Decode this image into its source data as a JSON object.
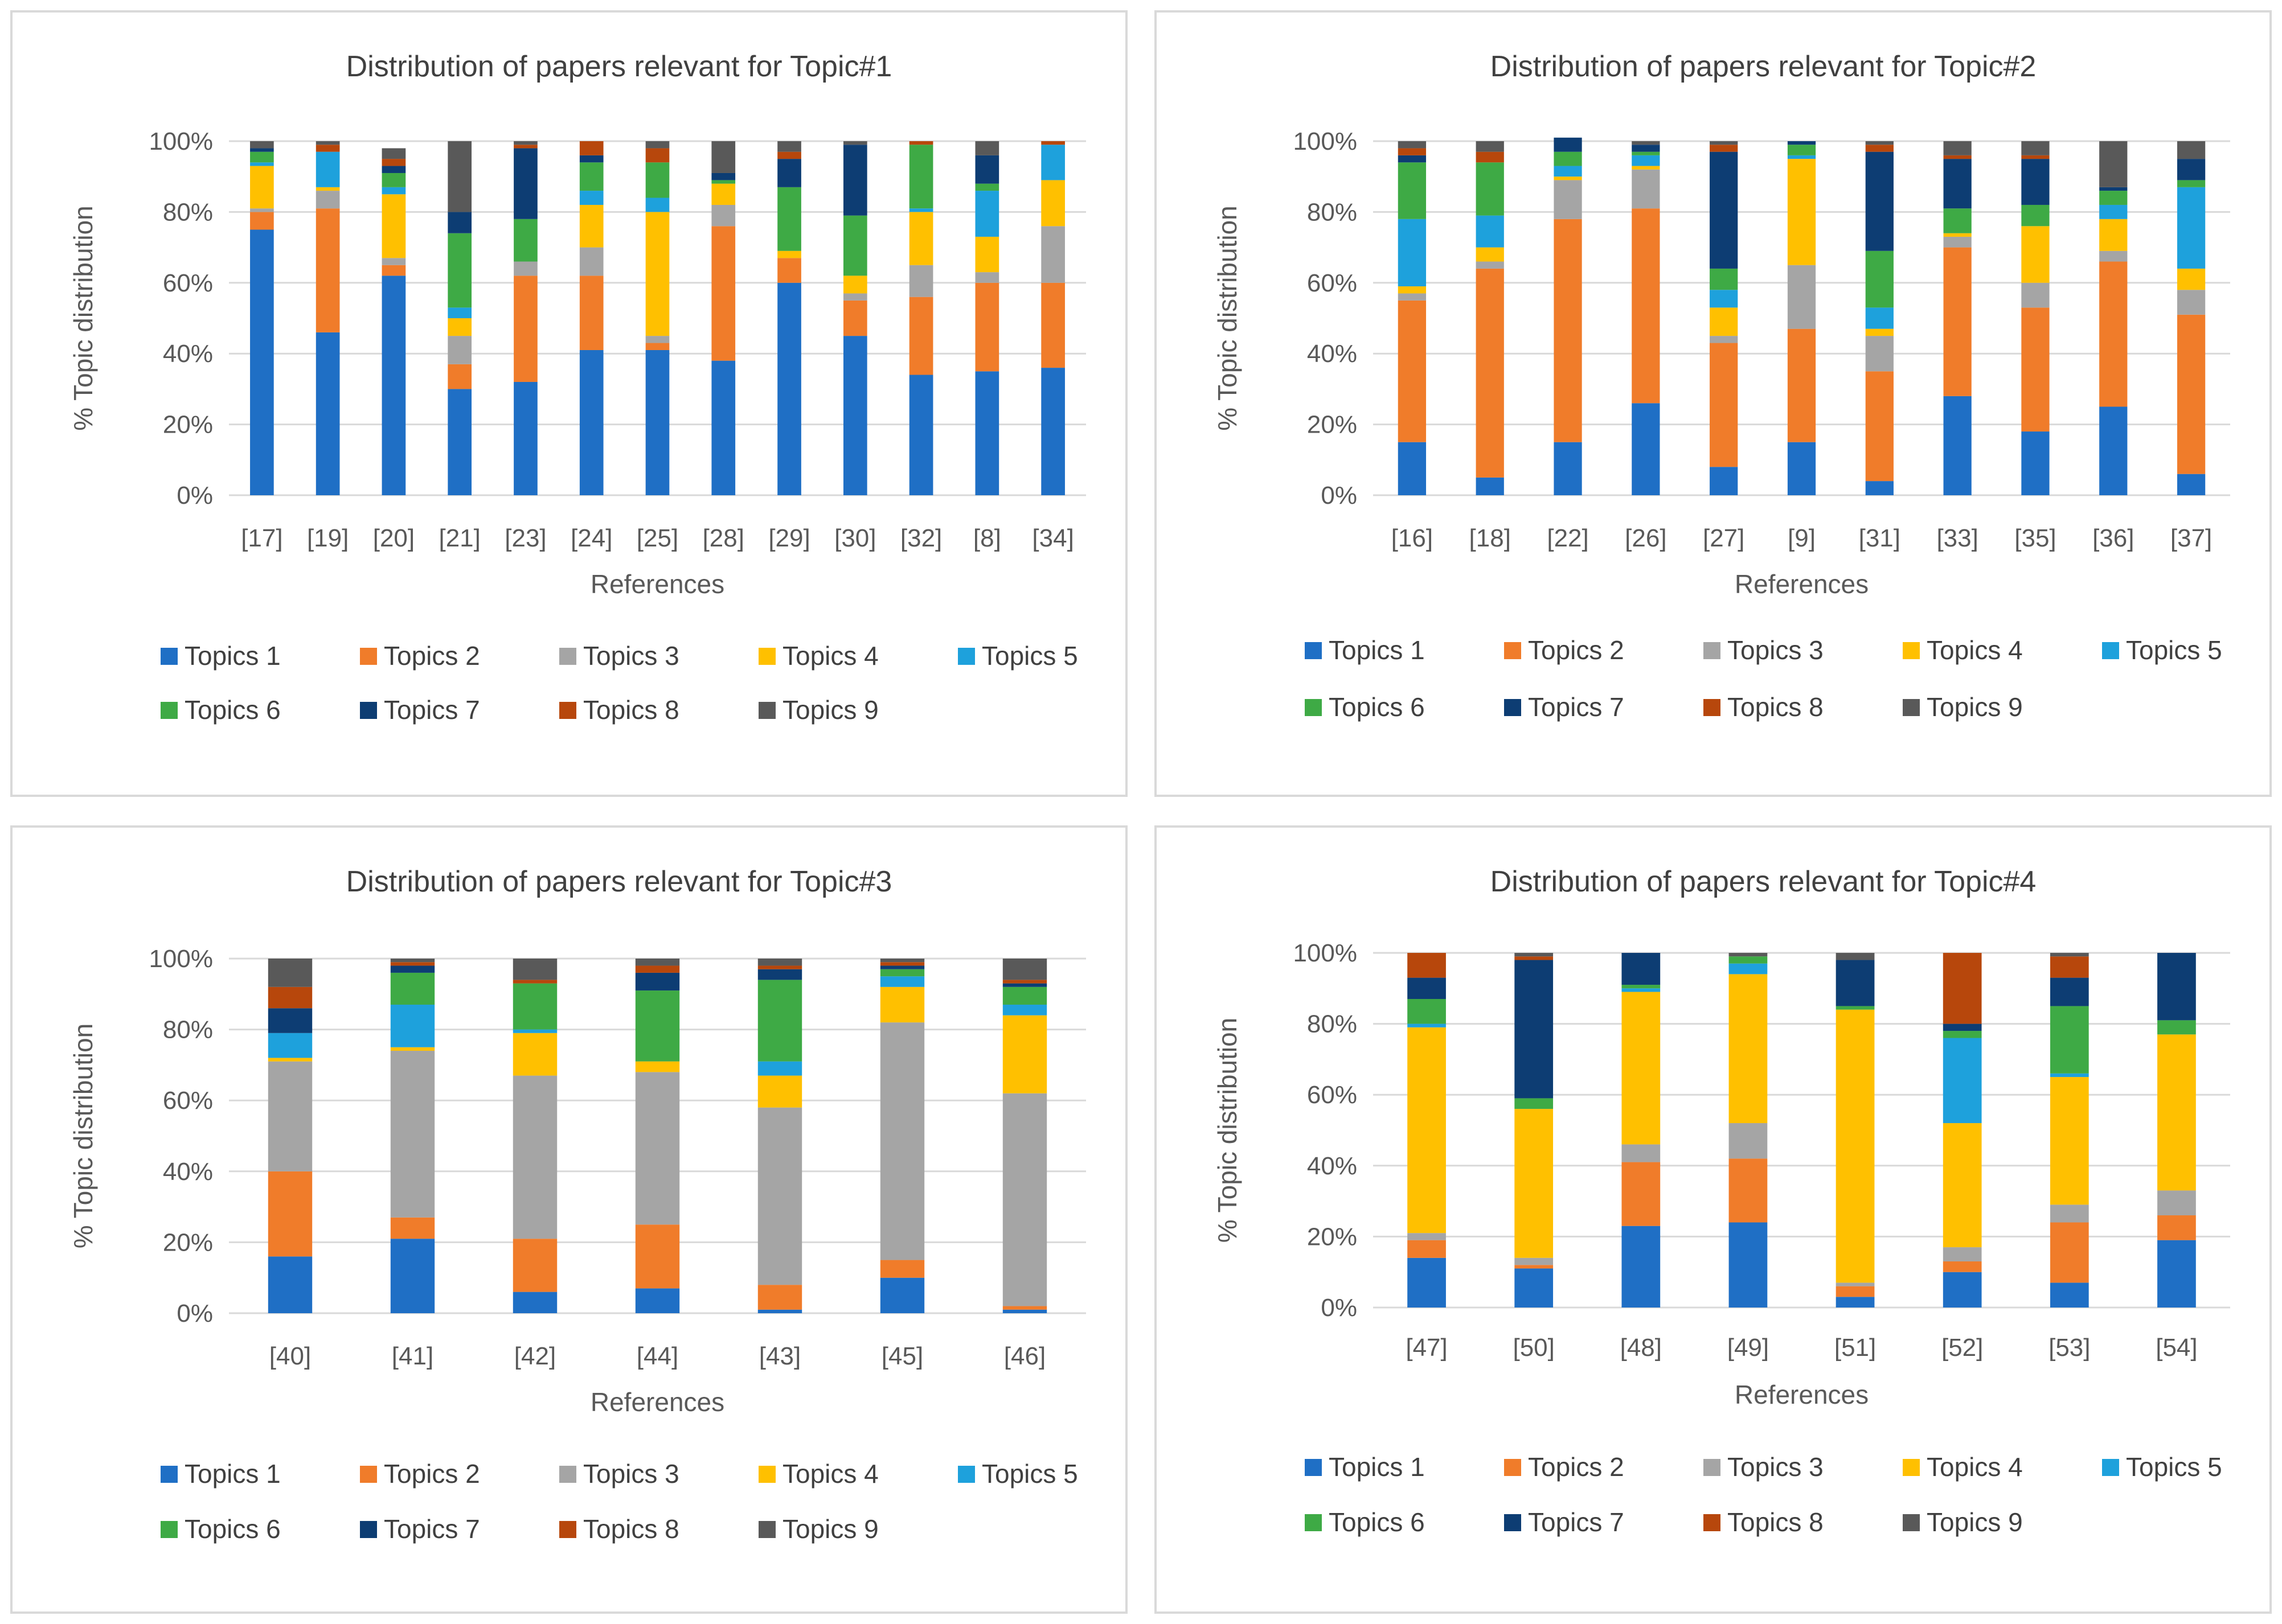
{
  "legend_labels": [
    "Topics 1",
    "Topics 2",
    "Topics 3",
    "Topics 4",
    "Topics 5",
    "Topics 6",
    "Topics 7",
    "Topics 8",
    "Topics 9"
  ],
  "colors": [
    "#1f6fc5",
    "#f07c2a",
    "#a5a5a5",
    "#ffc000",
    "#1ea1dc",
    "#3eaa45",
    "#0d3d73",
    "#b7470c",
    "#595959"
  ],
  "chart_data": [
    {
      "type": "bar",
      "stacked": true,
      "title": "Distribution of papers relevant for Topic#1",
      "xlabel": "References",
      "ylabel": "% Topic distribution",
      "ylim": [
        0,
        100
      ],
      "y_ticks": [
        "0%",
        "20%",
        "40%",
        "60%",
        "80%",
        "100%"
      ],
      "categories": [
        "[17]",
        "[19]",
        "[20]",
        "[21]",
        "[23]",
        "[24]",
        "[25]",
        "[28]",
        "[29]",
        "[30]",
        "[32]",
        "[8]",
        "[34]"
      ],
      "series": [
        {
          "name": "Topics 1",
          "values": [
            75,
            46,
            62,
            30,
            32,
            41,
            41,
            38,
            60,
            45,
            34,
            35,
            36
          ]
        },
        {
          "name": "Topics 2",
          "values": [
            5,
            35,
            3,
            7,
            30,
            21,
            2,
            38,
            7,
            10,
            22,
            25,
            24
          ]
        },
        {
          "name": "Topics 3",
          "values": [
            1,
            5,
            2,
            8,
            4,
            8,
            2,
            6,
            0,
            2,
            9,
            3,
            16
          ]
        },
        {
          "name": "Topics 4",
          "values": [
            12,
            1,
            18,
            5,
            0,
            12,
            35,
            6,
            2,
            5,
            15,
            10,
            13
          ]
        },
        {
          "name": "Topics 5",
          "values": [
            1,
            10,
            2,
            3,
            0,
            4,
            4,
            0,
            0,
            0,
            1,
            13,
            10
          ]
        },
        {
          "name": "Topics 6",
          "values": [
            3,
            0,
            4,
            21,
            12,
            8,
            10,
            1,
            18,
            17,
            18,
            2,
            0
          ]
        },
        {
          "name": "Topics 7",
          "values": [
            1,
            0,
            2,
            6,
            20,
            2,
            0,
            2,
            8,
            20,
            0,
            8,
            0
          ]
        },
        {
          "name": "Topics 8",
          "values": [
            0,
            2,
            2,
            0,
            1,
            4,
            4,
            0,
            2,
            0,
            1,
            0,
            1
          ]
        },
        {
          "name": "Topics 9",
          "values": [
            2,
            1,
            3,
            20,
            1,
            0,
            2,
            9,
            3,
            1,
            0,
            4,
            0
          ]
        }
      ]
    },
    {
      "type": "bar",
      "stacked": true,
      "title": "Distribution of papers relevant for Topic#2",
      "xlabel": "References",
      "ylabel": "% Topic distribution",
      "ylim": [
        0,
        100
      ],
      "y_ticks": [
        "0%",
        "20%",
        "40%",
        "60%",
        "80%",
        "100%"
      ],
      "categories": [
        "[16]",
        "[18]",
        "[22]",
        "[26]",
        "[27]",
        "[9]",
        "[31]",
        "[33]",
        "[35]",
        "[36]",
        "[37]"
      ],
      "series": [
        {
          "name": "Topics 1",
          "values": [
            15,
            5,
            15,
            26,
            8,
            15,
            4,
            28,
            18,
            25,
            6
          ]
        },
        {
          "name": "Topics 2",
          "values": [
            40,
            59,
            63,
            55,
            35,
            32,
            31,
            42,
            35,
            41,
            45
          ]
        },
        {
          "name": "Topics 3",
          "values": [
            2,
            2,
            11,
            11,
            2,
            18,
            10,
            3,
            7,
            3,
            7
          ]
        },
        {
          "name": "Topics 4",
          "values": [
            2,
            4,
            1,
            1,
            8,
            30,
            2,
            1,
            16,
            9,
            6
          ]
        },
        {
          "name": "Topics 5",
          "values": [
            19,
            9,
            3,
            3,
            5,
            1,
            6,
            0,
            0,
            4,
            23
          ]
        },
        {
          "name": "Topics 6",
          "values": [
            16,
            15,
            4,
            1,
            6,
            3,
            16,
            7,
            6,
            4,
            2
          ]
        },
        {
          "name": "Topics 7",
          "values": [
            2,
            0,
            4,
            2,
            33,
            1,
            28,
            14,
            13,
            1,
            6
          ]
        },
        {
          "name": "Topics 8",
          "values": [
            2,
            3,
            0,
            0,
            2,
            0,
            2,
            1,
            1,
            0,
            0
          ]
        },
        {
          "name": "Topics 9",
          "values": [
            2,
            3,
            0,
            1,
            1,
            0,
            1,
            4,
            4,
            13,
            5
          ]
        }
      ]
    },
    {
      "type": "bar",
      "stacked": true,
      "title": "Distribution of papers relevant for Topic#3",
      "xlabel": "References",
      "ylabel": "% Topic distribution",
      "ylim": [
        0,
        100
      ],
      "y_ticks": [
        "0%",
        "20%",
        "40%",
        "60%",
        "80%",
        "100%"
      ],
      "categories": [
        "[40]",
        "[41]",
        "[42]",
        "[44]",
        "[43]",
        "[45]",
        "[46]"
      ],
      "series": [
        {
          "name": "Topics 1",
          "values": [
            16,
            21,
            6,
            7,
            1,
            10,
            1
          ]
        },
        {
          "name": "Topics 2",
          "values": [
            24,
            6,
            15,
            18,
            7,
            5,
            1
          ]
        },
        {
          "name": "Topics 3",
          "values": [
            31,
            47,
            46,
            43,
            50,
            67,
            60
          ]
        },
        {
          "name": "Topics 4",
          "values": [
            1,
            1,
            12,
            3,
            9,
            10,
            22
          ]
        },
        {
          "name": "Topics 5",
          "values": [
            7,
            12,
            1,
            0,
            4,
            3,
            3
          ]
        },
        {
          "name": "Topics 6",
          "values": [
            0,
            9,
            13,
            20,
            23,
            2,
            5
          ]
        },
        {
          "name": "Topics 7",
          "values": [
            7,
            2,
            0,
            5,
            3,
            1,
            1
          ]
        },
        {
          "name": "Topics 8",
          "values": [
            6,
            1,
            1,
            2,
            1,
            1,
            1
          ]
        },
        {
          "name": "Topics 9",
          "values": [
            8,
            1,
            6,
            2,
            2,
            1,
            6
          ]
        }
      ]
    },
    {
      "type": "bar",
      "stacked": true,
      "title": "Distribution of papers relevant for Topic#4",
      "xlabel": "References",
      "ylabel": "% Topic distribution",
      "ylim": [
        0,
        100
      ],
      "y_ticks": [
        "0%",
        "20%",
        "40%",
        "60%",
        "80%",
        "100%"
      ],
      "categories": [
        "[47]",
        "[50]",
        "[48]",
        "[49]",
        "[51]",
        "[52]",
        "[53]",
        "[54]"
      ],
      "series": [
        {
          "name": "Topics 1",
          "values": [
            14,
            11,
            23,
            24,
            3,
            10,
            7,
            19
          ]
        },
        {
          "name": "Topics 2",
          "values": [
            5,
            1,
            18,
            18,
            3,
            3,
            17,
            7
          ]
        },
        {
          "name": "Topics 3",
          "values": [
            2,
            2,
            5,
            10,
            1,
            4,
            5,
            7
          ]
        },
        {
          "name": "Topics 4",
          "values": [
            58,
            42,
            43,
            42,
            77,
            35,
            36,
            44
          ]
        },
        {
          "name": "Topics 5",
          "values": [
            1,
            0,
            1,
            3,
            0,
            24,
            1,
            0
          ]
        },
        {
          "name": "Topics 6",
          "values": [
            7,
            3,
            1,
            2,
            1,
            2,
            19,
            4
          ]
        },
        {
          "name": "Topics 7",
          "values": [
            6,
            39,
            9,
            0,
            13,
            2,
            8,
            19
          ]
        },
        {
          "name": "Topics 8",
          "values": [
            7,
            1,
            0,
            0,
            0,
            20,
            6,
            0
          ]
        },
        {
          "name": "Topics 9",
          "values": [
            0,
            1,
            0,
            1,
            2,
            0,
            1,
            0
          ]
        }
      ]
    }
  ]
}
